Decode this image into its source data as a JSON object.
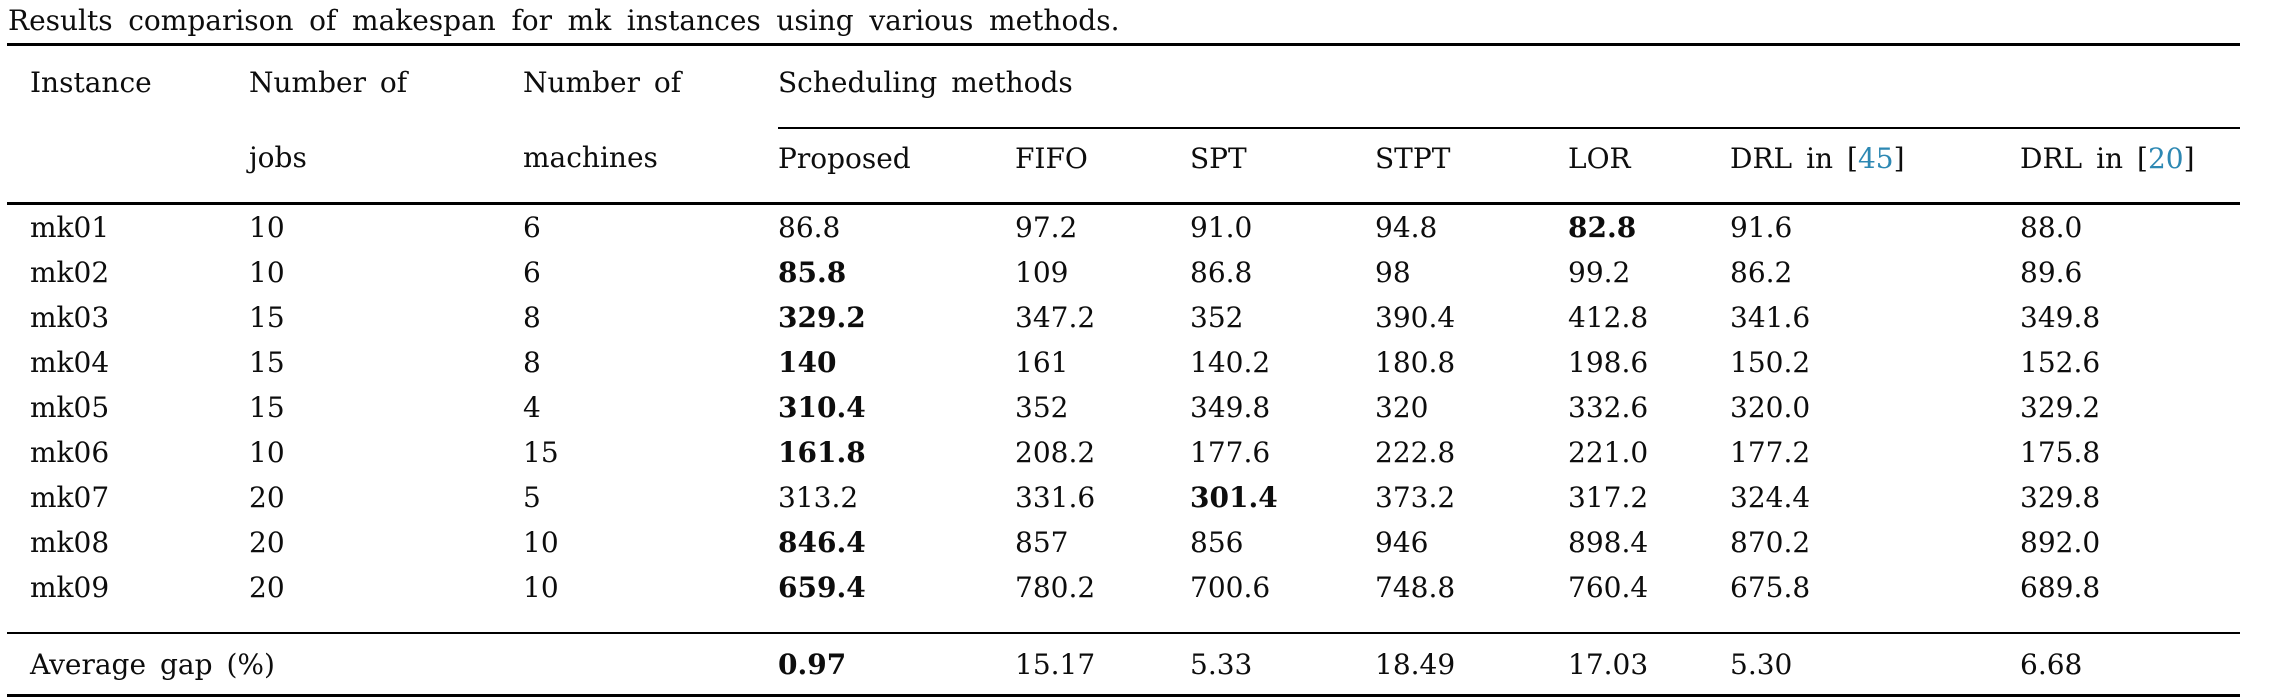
{
  "caption": "Results comparison of makespan for mk instances using various methods.",
  "colors": {
    "citation_blue": "#2d88b3",
    "text": "#0d0d0d",
    "rule": "#000000"
  },
  "table": {
    "group_header": "Scheduling methods",
    "col_headers": {
      "instance": "Instance",
      "jobs_line1": "Number of",
      "jobs_line2": "jobs",
      "machines_line1": "Number of",
      "machines_line2": "machines"
    },
    "method_headers": [
      {
        "label": "Proposed"
      },
      {
        "label": "FIFO"
      },
      {
        "label": "SPT"
      },
      {
        "label": "STPT"
      },
      {
        "label": "LOR"
      },
      {
        "label": "DRL in",
        "cite": "45"
      },
      {
        "label": "DRL in",
        "cite": "20"
      }
    ],
    "rows": [
      {
        "instance": "mk01",
        "jobs": "10",
        "machines": "6",
        "values": [
          "86.8",
          "97.2",
          "91.0",
          "94.8",
          "82.8",
          "91.6",
          "88.0"
        ],
        "bold_value_index": 4
      },
      {
        "instance": "mk02",
        "jobs": "10",
        "machines": "6",
        "values": [
          "85.8",
          "109",
          "86.8",
          "98",
          "99.2",
          "86.2",
          "89.6"
        ],
        "bold_value_index": 0
      },
      {
        "instance": "mk03",
        "jobs": "15",
        "machines": "8",
        "values": [
          "329.2",
          "347.2",
          "352",
          "390.4",
          "412.8",
          "341.6",
          "349.8"
        ],
        "bold_value_index": 0
      },
      {
        "instance": "mk04",
        "jobs": "15",
        "machines": "8",
        "values": [
          "140",
          "161",
          "140.2",
          "180.8",
          "198.6",
          "150.2",
          "152.6"
        ],
        "bold_value_index": 0
      },
      {
        "instance": "mk05",
        "jobs": "15",
        "machines": "4",
        "values": [
          "310.4",
          "352",
          "349.8",
          "320",
          "332.6",
          "320.0",
          "329.2"
        ],
        "bold_value_index": 0
      },
      {
        "instance": "mk06",
        "jobs": "10",
        "machines": "15",
        "values": [
          "161.8",
          "208.2",
          "177.6",
          "222.8",
          "221.0",
          "177.2",
          "175.8"
        ],
        "bold_value_index": 0
      },
      {
        "instance": "mk07",
        "jobs": "20",
        "machines": "5",
        "values": [
          "313.2",
          "331.6",
          "301.4",
          "373.2",
          "317.2",
          "324.4",
          "329.8"
        ],
        "bold_value_index": 2
      },
      {
        "instance": "mk08",
        "jobs": "20",
        "machines": "10",
        "values": [
          "846.4",
          "857",
          "856",
          "946",
          "898.4",
          "870.2",
          "892.0"
        ],
        "bold_value_index": 0
      },
      {
        "instance": "mk09",
        "jobs": "20",
        "machines": "10",
        "values": [
          "659.4",
          "780.2",
          "700.6",
          "748.8",
          "760.4",
          "675.8",
          "689.8"
        ],
        "bold_value_index": 0
      }
    ],
    "footer": {
      "label": "Average gap (%)",
      "values": [
        "0.97",
        "15.17",
        "5.33",
        "18.49",
        "17.03",
        "5.30",
        "6.68"
      ],
      "bold_value_index": 0
    }
  }
}
